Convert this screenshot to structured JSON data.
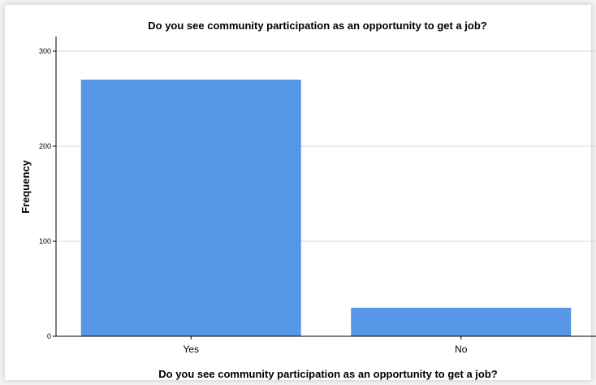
{
  "chart_data": {
    "type": "bar",
    "title": "Do you see community participation as an opportunity to get a job?",
    "xlabel": "Do you see community participation as an opportunity to get a job?",
    "ylabel": "Frequency",
    "categories": [
      "Yes",
      "No"
    ],
    "values": [
      270,
      30
    ],
    "ylim": [
      0,
      300
    ],
    "yticks": [
      "0",
      "100",
      "200",
      "300"
    ],
    "grid": true,
    "bar_color": "#5596e6"
  }
}
